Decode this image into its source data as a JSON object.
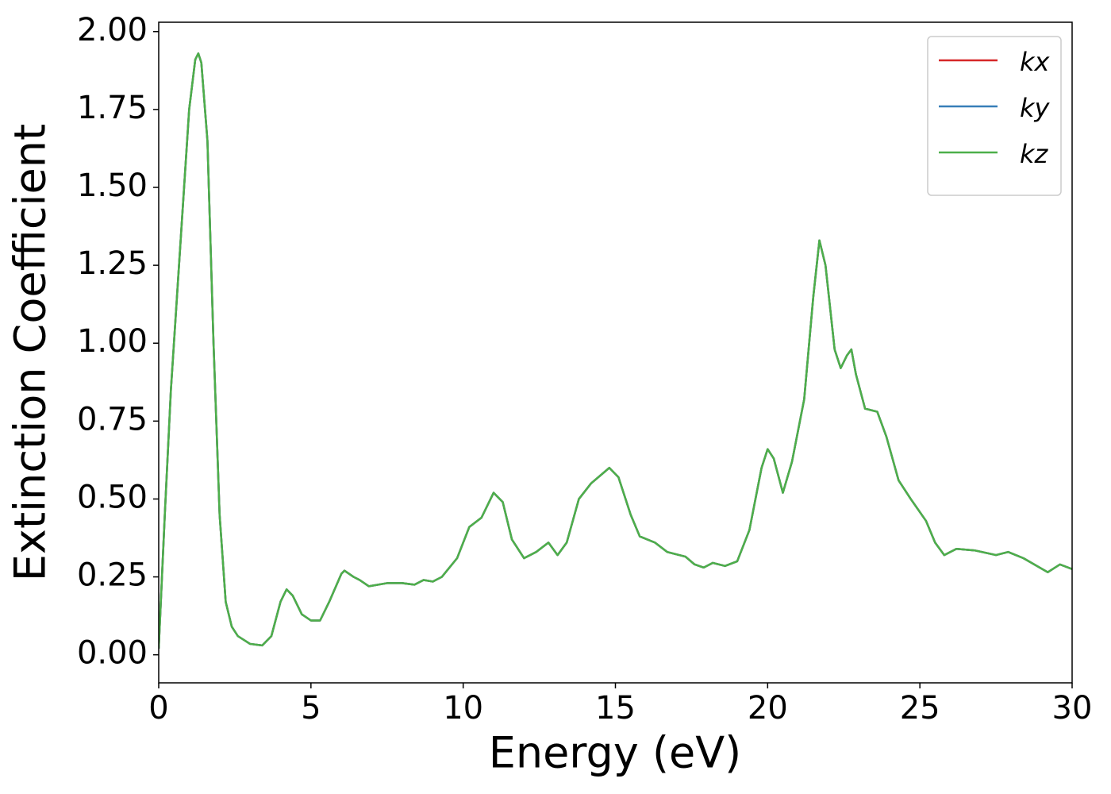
{
  "chart_data": {
    "type": "line",
    "xlabel": "Energy (eV)",
    "ylabel": "Extinction Coefficient",
    "x": [
      0,
      0.2,
      0.4,
      0.6,
      0.8,
      1.0,
      1.2,
      1.3,
      1.4,
      1.6,
      1.8,
      2.0,
      2.2,
      2.4,
      2.6,
      3.0,
      3.4,
      3.7,
      4.0,
      4.2,
      4.4,
      4.7,
      5.0,
      5.3,
      5.6,
      6.0,
      6.1,
      6.4,
      6.6,
      6.9,
      7.5,
      8.0,
      8.4,
      8.7,
      9.0,
      9.3,
      9.8,
      10.2,
      10.6,
      11.0,
      11.3,
      11.6,
      12.0,
      12.4,
      12.8,
      13.1,
      13.4,
      13.8,
      14.2,
      14.8,
      15.1,
      15.5,
      15.8,
      16.3,
      16.7,
      17.3,
      17.6,
      17.9,
      18.2,
      18.6,
      19.0,
      19.4,
      19.8,
      20.0,
      20.2,
      20.5,
      20.8,
      21.2,
      21.5,
      21.7,
      21.9,
      22.2,
      22.4,
      22.6,
      22.75,
      22.9,
      23.2,
      23.6,
      23.9,
      24.3,
      24.7,
      25.2,
      25.5,
      25.8,
      26.2,
      26.8,
      27.5,
      27.9,
      28.4,
      29.2,
      29.6,
      30.0
    ],
    "series": [
      {
        "name": "kx",
        "color": "#d62728",
        "values": [
          0.02,
          0.45,
          0.85,
          1.15,
          1.45,
          1.75,
          1.91,
          1.93,
          1.9,
          1.65,
          1.0,
          0.45,
          0.17,
          0.09,
          0.06,
          0.035,
          0.03,
          0.06,
          0.17,
          0.21,
          0.19,
          0.13,
          0.11,
          0.11,
          0.17,
          0.26,
          0.27,
          0.25,
          0.24,
          0.22,
          0.23,
          0.23,
          0.225,
          0.24,
          0.235,
          0.25,
          0.31,
          0.41,
          0.44,
          0.52,
          0.49,
          0.37,
          0.31,
          0.33,
          0.36,
          0.32,
          0.36,
          0.5,
          0.55,
          0.6,
          0.57,
          0.45,
          0.38,
          0.36,
          0.33,
          0.315,
          0.29,
          0.28,
          0.295,
          0.285,
          0.3,
          0.4,
          0.6,
          0.66,
          0.63,
          0.52,
          0.62,
          0.82,
          1.15,
          1.33,
          1.25,
          0.98,
          0.92,
          0.96,
          0.98,
          0.9,
          0.79,
          0.78,
          0.7,
          0.56,
          0.5,
          0.43,
          0.36,
          0.32,
          0.34,
          0.335,
          0.32,
          0.33,
          0.31,
          0.265,
          0.29,
          0.275
        ]
      },
      {
        "name": "ky",
        "color": "#377eb8",
        "values": [
          0.02,
          0.45,
          0.85,
          1.15,
          1.45,
          1.75,
          1.91,
          1.93,
          1.9,
          1.65,
          1.0,
          0.45,
          0.17,
          0.09,
          0.06,
          0.035,
          0.03,
          0.06,
          0.17,
          0.21,
          0.19,
          0.13,
          0.11,
          0.11,
          0.17,
          0.26,
          0.27,
          0.25,
          0.24,
          0.22,
          0.23,
          0.23,
          0.225,
          0.24,
          0.235,
          0.25,
          0.31,
          0.41,
          0.44,
          0.52,
          0.49,
          0.37,
          0.31,
          0.33,
          0.36,
          0.32,
          0.36,
          0.5,
          0.55,
          0.6,
          0.57,
          0.45,
          0.38,
          0.36,
          0.33,
          0.315,
          0.29,
          0.28,
          0.295,
          0.285,
          0.3,
          0.4,
          0.6,
          0.66,
          0.63,
          0.52,
          0.62,
          0.82,
          1.15,
          1.33,
          1.25,
          0.98,
          0.92,
          0.96,
          0.98,
          0.9,
          0.79,
          0.78,
          0.7,
          0.56,
          0.5,
          0.43,
          0.36,
          0.32,
          0.34,
          0.335,
          0.32,
          0.33,
          0.31,
          0.265,
          0.29,
          0.275
        ]
      },
      {
        "name": "kz",
        "color": "#4daf4a",
        "values": [
          0.02,
          0.45,
          0.85,
          1.15,
          1.45,
          1.75,
          1.91,
          1.93,
          1.9,
          1.65,
          1.0,
          0.45,
          0.17,
          0.09,
          0.06,
          0.035,
          0.03,
          0.06,
          0.17,
          0.21,
          0.19,
          0.13,
          0.11,
          0.11,
          0.17,
          0.26,
          0.27,
          0.25,
          0.24,
          0.22,
          0.23,
          0.23,
          0.225,
          0.24,
          0.235,
          0.25,
          0.31,
          0.41,
          0.44,
          0.52,
          0.49,
          0.37,
          0.31,
          0.33,
          0.36,
          0.32,
          0.36,
          0.5,
          0.55,
          0.6,
          0.57,
          0.45,
          0.38,
          0.36,
          0.33,
          0.315,
          0.29,
          0.28,
          0.295,
          0.285,
          0.3,
          0.4,
          0.6,
          0.66,
          0.63,
          0.52,
          0.62,
          0.82,
          1.15,
          1.33,
          1.25,
          0.98,
          0.92,
          0.96,
          0.98,
          0.9,
          0.79,
          0.78,
          0.7,
          0.56,
          0.5,
          0.43,
          0.36,
          0.32,
          0.34,
          0.335,
          0.32,
          0.33,
          0.31,
          0.265,
          0.29,
          0.275
        ]
      }
    ],
    "xlim": [
      0,
      30
    ],
    "xticks": [
      0,
      5,
      10,
      15,
      20,
      25,
      30
    ],
    "ylim": [
      -0.09,
      2.03
    ],
    "yticks": [
      {
        "value": 0,
        "label": "0.00"
      },
      {
        "value": 0.25,
        "label": "0.25"
      },
      {
        "value": 0.5,
        "label": "0.50"
      },
      {
        "value": 0.75,
        "label": "0.75"
      },
      {
        "value": 1,
        "label": "1.00"
      },
      {
        "value": 1.25,
        "label": "1.25"
      },
      {
        "value": 1.5,
        "label": "1.50"
      },
      {
        "value": 1.75,
        "label": "1.75"
      },
      {
        "value": 2,
        "label": "2.00"
      }
    ],
    "grid": false,
    "legend": "upper right"
  }
}
